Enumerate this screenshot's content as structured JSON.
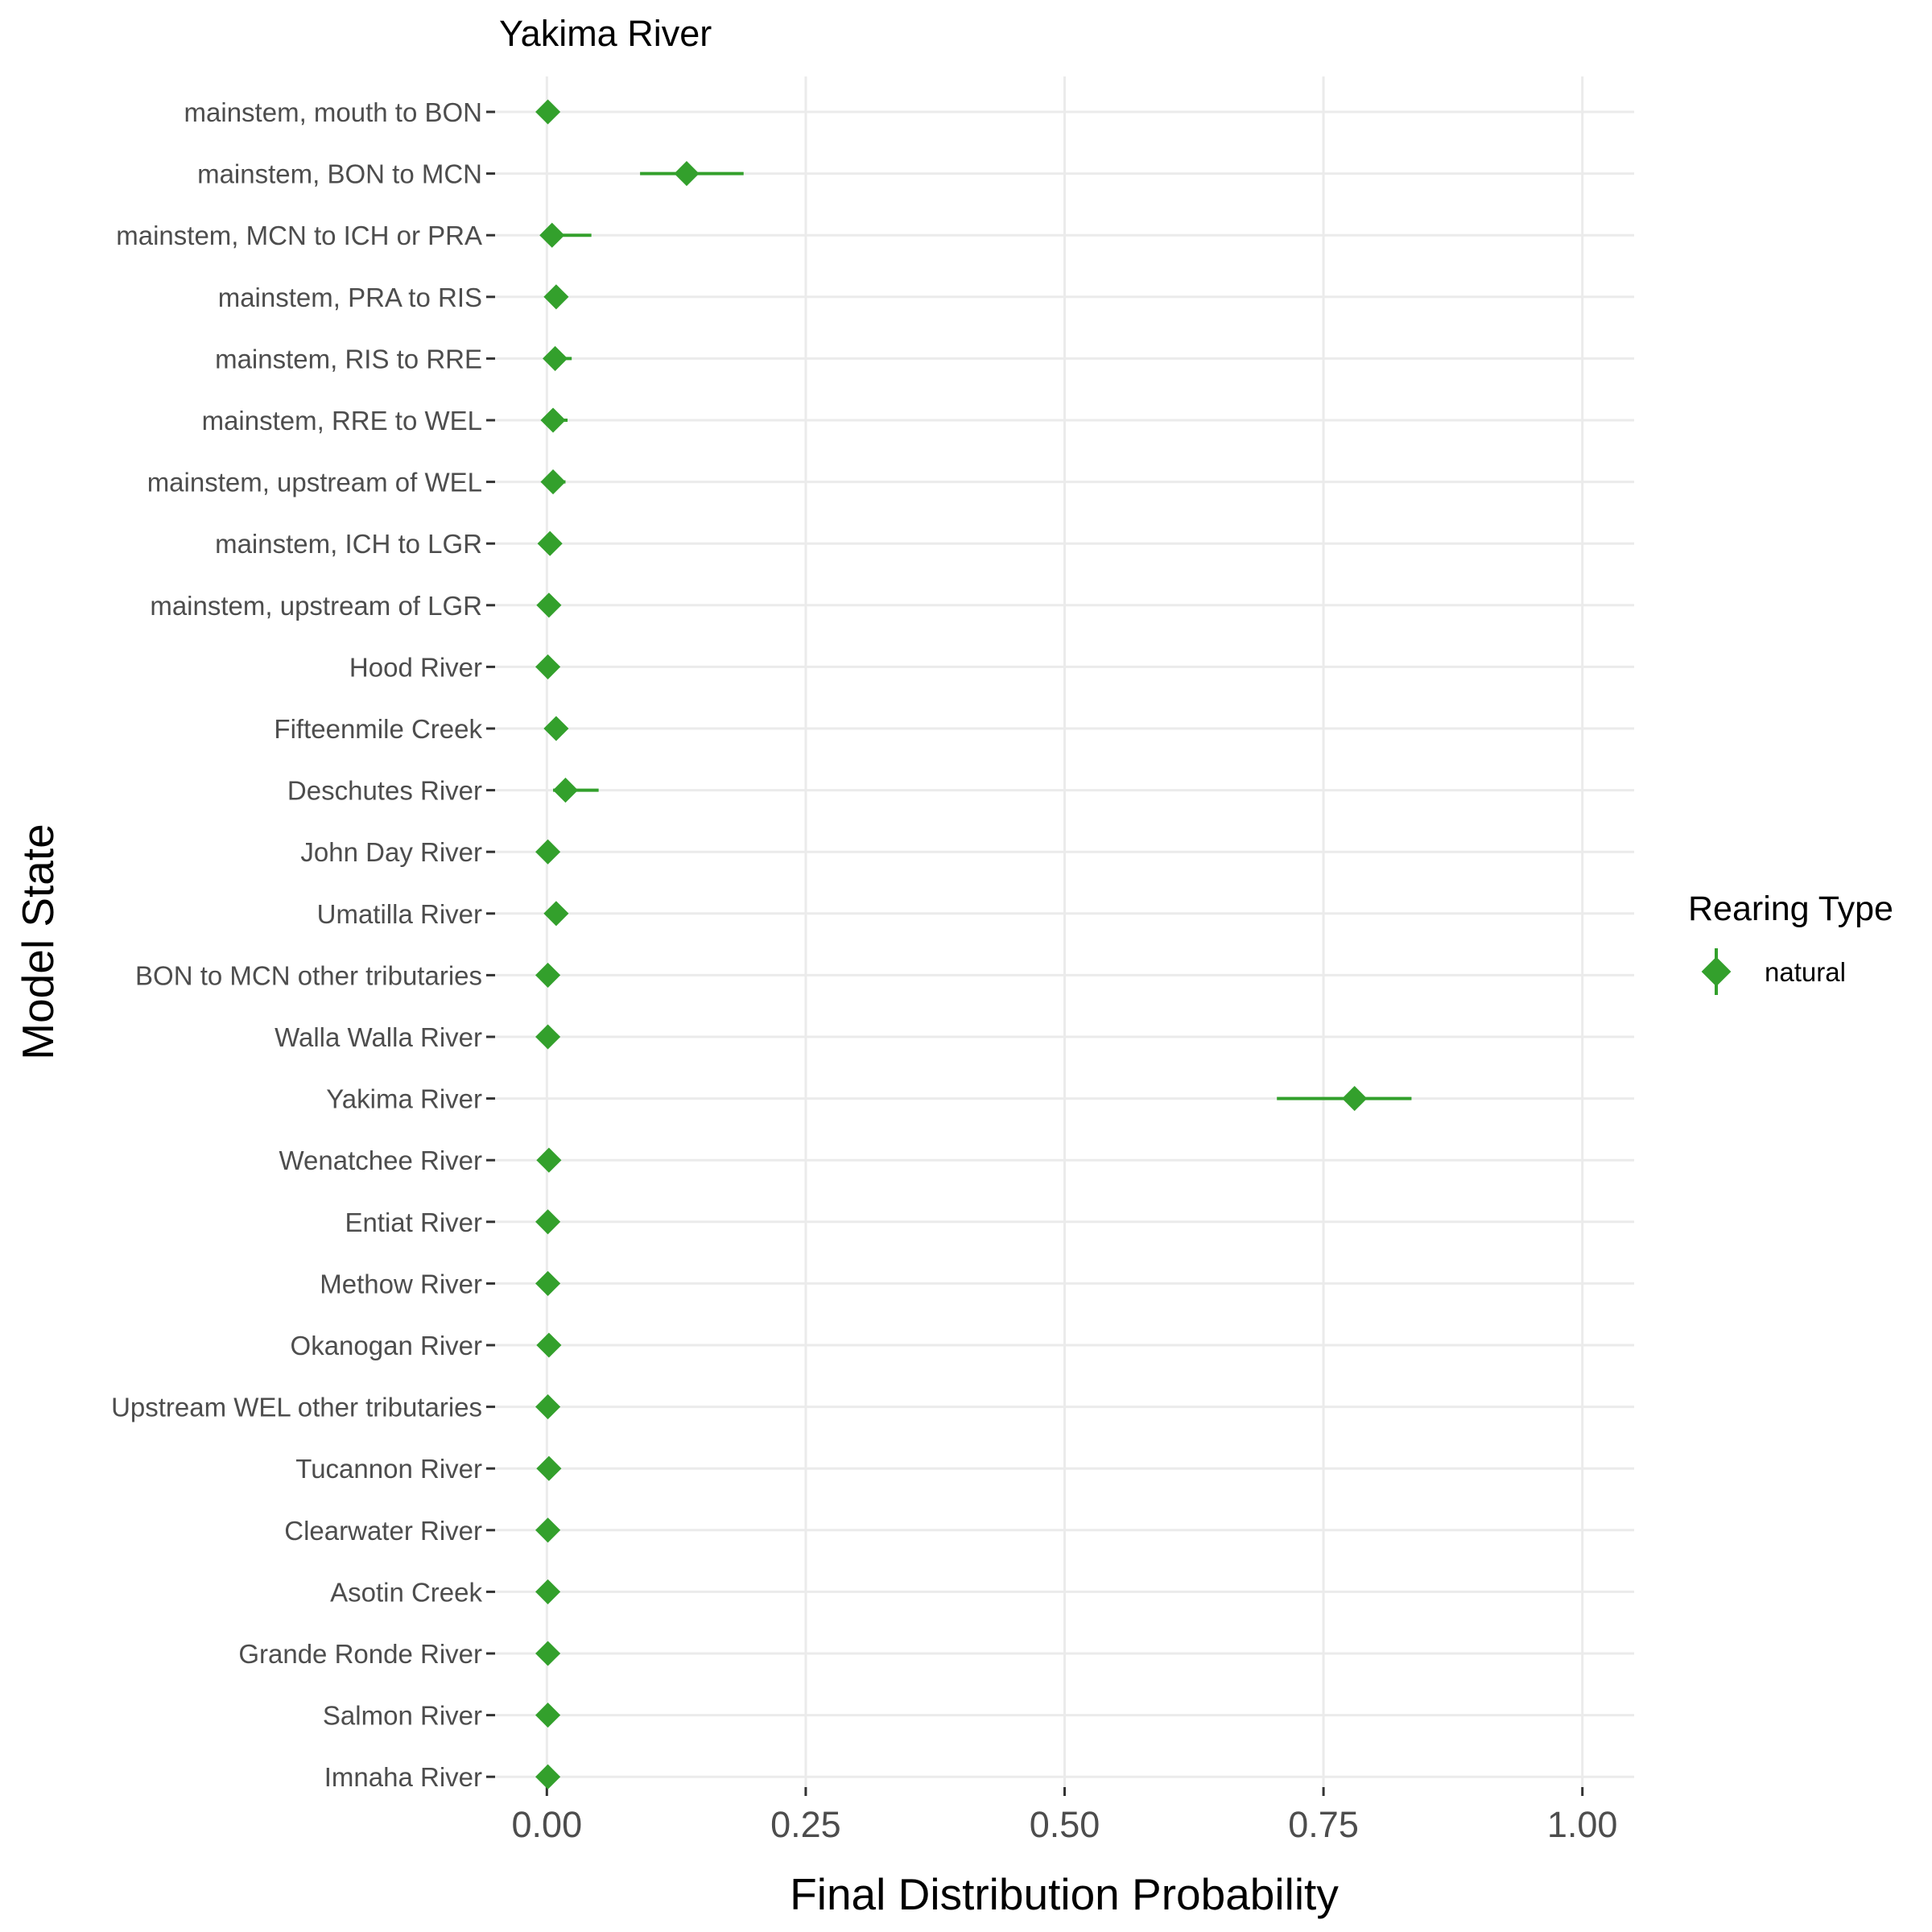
{
  "chart_data": {
    "type": "scatter",
    "title": "Yakima River",
    "xlabel": "Final Distribution Probability",
    "ylabel": "Model State",
    "xlim": [
      -0.05,
      1.05
    ],
    "x_ticks": [
      0,
      0.25,
      0.5,
      0.75,
      1
    ],
    "x_tick_labels": [
      "0.00",
      "0.25",
      "0.50",
      "0.75",
      "1.00"
    ],
    "grid": true,
    "legend": {
      "title": "Rearing Type",
      "position": "right"
    },
    "categories": [
      "mainstem, mouth to BON",
      "mainstem, BON to MCN",
      "mainstem, MCN to ICH or PRA",
      "mainstem, PRA to RIS",
      "mainstem, RIS to RRE",
      "mainstem, RRE to WEL",
      "mainstem, upstream of WEL",
      "mainstem, ICH to LGR",
      "mainstem, upstream of LGR",
      "Hood River",
      "Fifteenmile Creek",
      "Deschutes River",
      "John Day River",
      "Umatilla River",
      "BON to MCN other tributaries",
      "Walla Walla River",
      "Yakima River",
      "Wenatchee River",
      "Entiat River",
      "Methow River",
      "Okanogan River",
      "Upstream WEL other tributaries",
      "Tucannon River",
      "Clearwater River",
      "Asotin Creek",
      "Grande Ronde River",
      "Salmon River",
      "Imnaha River"
    ],
    "series": [
      {
        "name": "natural",
        "color": "#33a02c",
        "values": [
          0.001,
          0.135,
          0.005,
          0.009,
          0.008,
          0.006,
          0.006,
          0.003,
          0.002,
          0.001,
          0.009,
          0.018,
          0.001,
          0.009,
          0.001,
          0.001,
          0.78,
          0.002,
          0.001,
          0.001,
          0.002,
          0.001,
          0.002,
          0.001,
          0.001,
          0.001,
          0.001,
          0.001
        ],
        "lower": [
          0.0,
          0.09,
          0.0,
          0.002,
          0.002,
          0.001,
          0.001,
          0.0,
          0.0,
          0.0,
          0.003,
          0.006,
          0.0,
          0.003,
          0.0,
          0.0,
          0.705,
          0.0,
          0.0,
          0.0,
          0.0,
          0.0,
          0.0,
          0.0,
          0.0,
          0.0,
          0.0,
          0.0
        ],
        "upper": [
          0.006,
          0.19,
          0.043,
          0.017,
          0.024,
          0.02,
          0.018,
          0.01,
          0.008,
          0.006,
          0.019,
          0.05,
          0.006,
          0.019,
          0.006,
          0.006,
          0.835,
          0.008,
          0.006,
          0.006,
          0.008,
          0.006,
          0.008,
          0.006,
          0.006,
          0.006,
          0.006,
          0.006
        ]
      }
    ]
  }
}
